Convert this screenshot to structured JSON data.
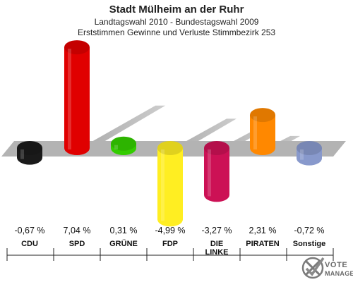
{
  "header": {
    "title": "Stadt Mülheim an der Ruhr",
    "subtitle1": "Landtagswahl 2010 - Bundestagswahl 2009",
    "subtitle2": "Erststimmen Gewinne und Verluste Stimmbezirk 253"
  },
  "brand": {
    "line1": "VOTE",
    "line2": "MANAGER"
  },
  "chart_data": {
    "type": "bar",
    "title": "Stadt Mülheim an der Ruhr",
    "subtitle": "Landtagswahl 2010 - Bundestagswahl 2009 / Erststimmen Gewinne und Verluste Stimmbezirk 253",
    "unit": "%",
    "categories": [
      "CDU",
      "SPD",
      "GRÜNE",
      "FDP",
      "DIE LINKE",
      "PIRATEN",
      "Sonstige"
    ],
    "category_lines": [
      [
        "CDU"
      ],
      [
        "SPD"
      ],
      [
        "GRÜNE"
      ],
      [
        "FDP"
      ],
      [
        "DIE",
        "LINKE"
      ],
      [
        "PIRATEN"
      ],
      [
        "Sonstige"
      ]
    ],
    "values": [
      -0.67,
      7.04,
      0.31,
      -4.99,
      -3.27,
      2.31,
      -0.72
    ],
    "value_labels": [
      "-0,67 %",
      "7,04 %",
      "0,31 %",
      "-4,99 %",
      "-3,27 %",
      "2,31 %",
      "-0,72 %"
    ],
    "colors": [
      "#1a1a1a",
      "#e00000",
      "#33cc00",
      "#ffee22",
      "#cc1155",
      "#ff8800",
      "#8899cc"
    ],
    "xlabel": "",
    "ylabel": "",
    "grid": false,
    "legend": "none"
  }
}
